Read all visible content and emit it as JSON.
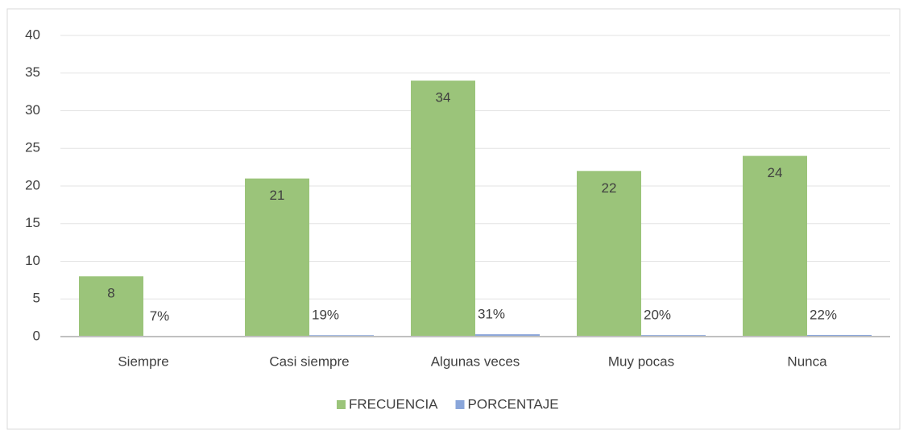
{
  "chart_data": {
    "type": "bar",
    "categories": [
      "Siempre",
      "Casi siempre",
      "Algunas  veces",
      "Muy pocas",
      "Nunca"
    ],
    "series": [
      {
        "name": "FRECUENCIA",
        "color": "#9bc47a",
        "values": [
          8,
          21,
          34,
          22,
          24
        ]
      },
      {
        "name": "PORCENTAJE",
        "color": "#8aa6da",
        "values": [
          0.07,
          0.19,
          0.31,
          0.2,
          0.22
        ],
        "value_labels": [
          "7%",
          "19%",
          "31%",
          "20%",
          "22%"
        ]
      }
    ],
    "ylim": [
      0,
      40
    ],
    "yticks": [
      0,
      5,
      10,
      15,
      20,
      25,
      30,
      35,
      40
    ],
    "grid": true,
    "legend": "bottom"
  }
}
